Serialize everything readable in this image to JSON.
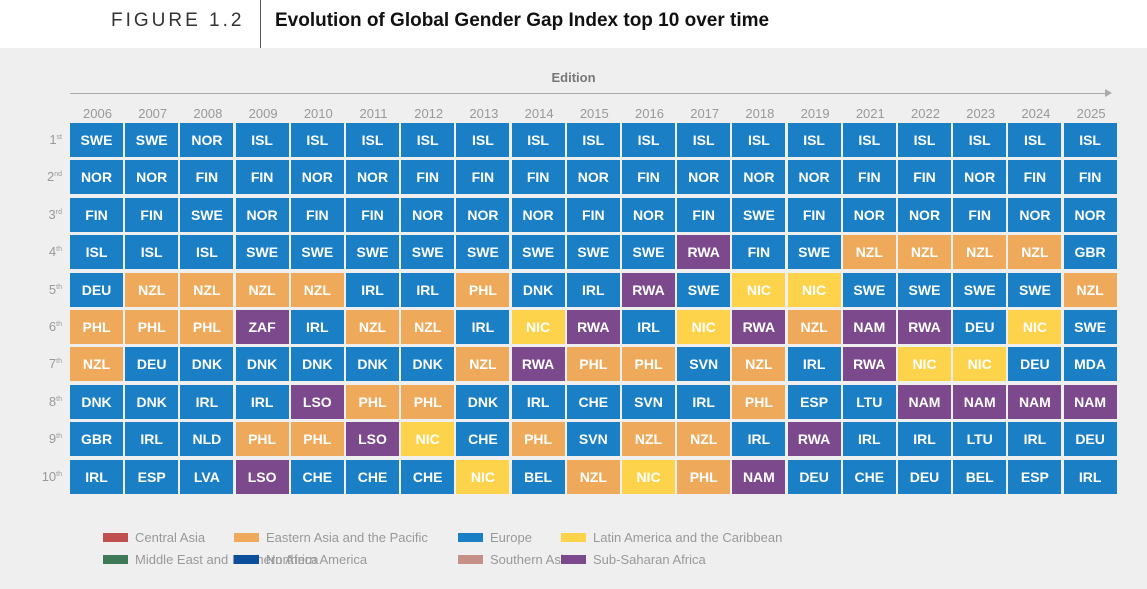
{
  "header": {
    "figure_label": "FIGURE 1.2",
    "title": "Evolution of Global Gender Gap Index top 10 over time"
  },
  "chart_data": {
    "type": "table",
    "axis_title": "Edition",
    "years": [
      "2006",
      "2007",
      "2008",
      "2009",
      "2010",
      "2011",
      "2012",
      "2013",
      "2014",
      "2015",
      "2016",
      "2017",
      "2018",
      "2019",
      "2021",
      "2022",
      "2023",
      "2024",
      "2025"
    ],
    "ranks": [
      {
        "num": "1",
        "suffix": "st"
      },
      {
        "num": "2",
        "suffix": "nd"
      },
      {
        "num": "3",
        "suffix": "rd"
      },
      {
        "num": "4",
        "suffix": "th"
      },
      {
        "num": "5",
        "suffix": "th"
      },
      {
        "num": "6",
        "suffix": "th"
      },
      {
        "num": "7",
        "suffix": "th"
      },
      {
        "num": "8",
        "suffix": "th"
      },
      {
        "num": "9",
        "suffix": "th"
      },
      {
        "num": "10",
        "suffix": "th"
      }
    ],
    "grid": [
      [
        "SWE",
        "SWE",
        "NOR",
        "ISL",
        "ISL",
        "ISL",
        "ISL",
        "ISL",
        "ISL",
        "ISL",
        "ISL",
        "ISL",
        "ISL",
        "ISL",
        "ISL",
        "ISL",
        "ISL",
        "ISL",
        "ISL"
      ],
      [
        "NOR",
        "NOR",
        "FIN",
        "FIN",
        "NOR",
        "NOR",
        "FIN",
        "FIN",
        "FIN",
        "NOR",
        "FIN",
        "NOR",
        "NOR",
        "NOR",
        "FIN",
        "FIN",
        "NOR",
        "FIN",
        "FIN"
      ],
      [
        "FIN",
        "FIN",
        "SWE",
        "NOR",
        "FIN",
        "FIN",
        "NOR",
        "NOR",
        "NOR",
        "FIN",
        "NOR",
        "FIN",
        "SWE",
        "FIN",
        "NOR",
        "NOR",
        "FIN",
        "NOR",
        "NOR"
      ],
      [
        "ISL",
        "ISL",
        "ISL",
        "SWE",
        "SWE",
        "SWE",
        "SWE",
        "SWE",
        "SWE",
        "SWE",
        "SWE",
        "RWA",
        "FIN",
        "SWE",
        "NZL",
        "NZL",
        "NZL",
        "NZL",
        "GBR"
      ],
      [
        "DEU",
        "NZL",
        "NZL",
        "NZL",
        "NZL",
        "IRL",
        "IRL",
        "PHL",
        "DNK",
        "IRL",
        "RWA",
        "SWE",
        "NIC",
        "NIC",
        "SWE",
        "SWE",
        "SWE",
        "SWE",
        "NZL"
      ],
      [
        "PHL",
        "PHL",
        "PHL",
        "ZAF",
        "IRL",
        "NZL",
        "NZL",
        "IRL",
        "NIC",
        "RWA",
        "IRL",
        "NIC",
        "RWA",
        "NZL",
        "NAM",
        "RWA",
        "DEU",
        "NIC",
        "SWE"
      ],
      [
        "NZL",
        "DEU",
        "DNK",
        "DNK",
        "DNK",
        "DNK",
        "DNK",
        "NZL",
        "RWA",
        "PHL",
        "PHL",
        "SVN",
        "NZL",
        "IRL",
        "RWA",
        "NIC",
        "NIC",
        "DEU",
        "MDA"
      ],
      [
        "DNK",
        "DNK",
        "IRL",
        "IRL",
        "LSO",
        "PHL",
        "PHL",
        "DNK",
        "IRL",
        "CHE",
        "SVN",
        "IRL",
        "PHL",
        "ESP",
        "LTU",
        "NAM",
        "NAM",
        "NAM",
        "NAM"
      ],
      [
        "GBR",
        "IRL",
        "NLD",
        "PHL",
        "PHL",
        "LSO",
        "NIC",
        "CHE",
        "PHL",
        "SVN",
        "NZL",
        "NZL",
        "IRL",
        "RWA",
        "IRL",
        "IRL",
        "LTU",
        "IRL",
        "DEU"
      ],
      [
        "IRL",
        "ESP",
        "LVA",
        "LSO",
        "CHE",
        "CHE",
        "CHE",
        "NIC",
        "BEL",
        "NZL",
        "NIC",
        "PHL",
        "NAM",
        "DEU",
        "CHE",
        "DEU",
        "BEL",
        "ESP",
        "IRL"
      ]
    ],
    "region_of": {
      "SWE": "Europe",
      "NOR": "Europe",
      "FIN": "Europe",
      "ISL": "Europe",
      "IRL": "Europe",
      "DEU": "Europe",
      "DNK": "Europe",
      "GBR": "Europe",
      "NLD": "Europe",
      "ESP": "Europe",
      "LVA": "Europe",
      "CHE": "Europe",
      "BEL": "Europe",
      "SVN": "Europe",
      "LTU": "Europe",
      "MDA": "Europe",
      "NZL": "Eastern Asia and the Pacific",
      "PHL": "Eastern Asia and the Pacific",
      "NIC": "Latin America and the Caribbean",
      "RWA": "Sub-Saharan Africa",
      "NAM": "Sub-Saharan Africa",
      "LSO": "Sub-Saharan Africa",
      "ZAF": "Sub-Saharan Africa"
    },
    "legend": [
      {
        "name": "Central Asia",
        "color": "#c0504d"
      },
      {
        "name": "Eastern Asia and the Pacific",
        "color": "#eeaa5a"
      },
      {
        "name": "Europe",
        "color": "#1a7fc4"
      },
      {
        "name": "Latin America and the Caribbean",
        "color": "#fcd34a"
      },
      {
        "name": "Middle East and Northern Africa",
        "color": "#3f7a58"
      },
      {
        "name": "Northern America",
        "color": "#0b4f9c"
      },
      {
        "name": "Southern Asia",
        "color": "#c49088"
      },
      {
        "name": "Sub-Saharan Africa",
        "color": "#7c4a8c"
      }
    ]
  }
}
